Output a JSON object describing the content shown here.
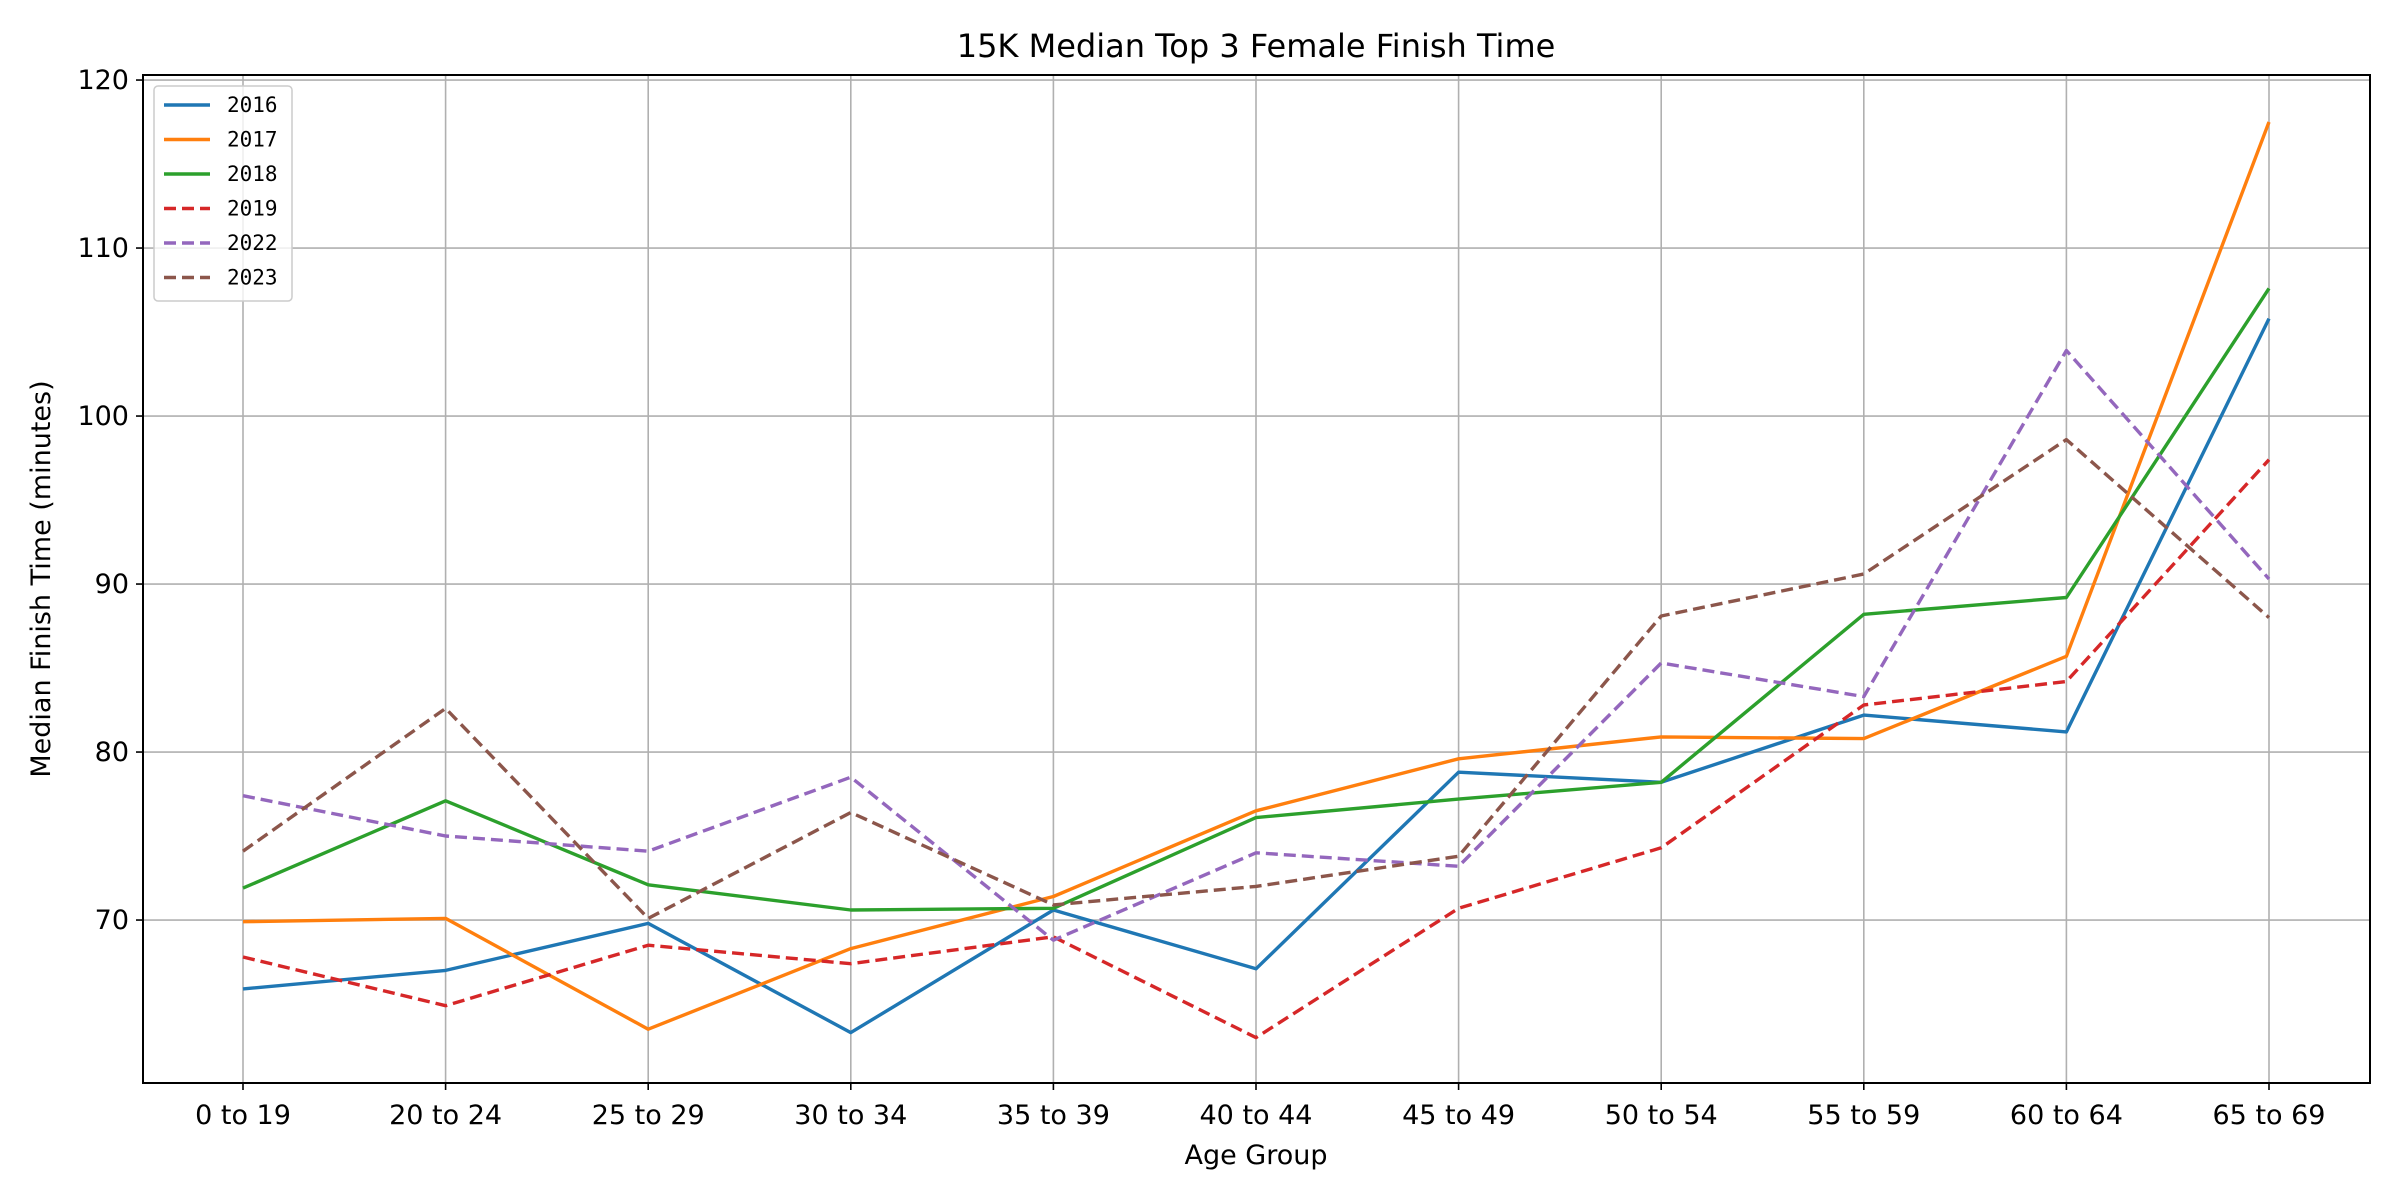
{
  "chart_data": {
    "type": "line",
    "title": "15K Median Top 3 Female Finish Time",
    "xlabel": "Age Group",
    "ylabel": "Median Finish Time (minutes)",
    "ylim": [
      60.3,
      120.3
    ],
    "yticks": [
      70,
      80,
      90,
      100,
      110,
      120
    ],
    "grid": true,
    "legend_position": "upper-left",
    "categories": [
      "0 to 19",
      "20 to 24",
      "25 to 29",
      "30 to 34",
      "35 to 39",
      "40 to 44",
      "45 to 49",
      "50 to 54",
      "55 to 59",
      "60 to 64",
      "65 to 69"
    ],
    "series": [
      {
        "name": "2016",
        "color": "#1f77b4",
        "dash": false,
        "values": [
          65.9,
          67.0,
          69.8,
          63.3,
          70.6,
          67.1,
          78.8,
          78.2,
          82.2,
          81.2,
          105.8
        ]
      },
      {
        "name": "2017",
        "color": "#ff7f0e",
        "dash": false,
        "values": [
          69.9,
          70.1,
          63.5,
          68.3,
          71.4,
          76.5,
          79.6,
          80.9,
          80.8,
          85.7,
          117.5
        ]
      },
      {
        "name": "2018",
        "color": "#2ca02c",
        "dash": false,
        "values": [
          71.9,
          77.1,
          72.1,
          70.6,
          70.7,
          76.1,
          77.2,
          78.2,
          88.2,
          89.2,
          107.6
        ]
      },
      {
        "name": "2019",
        "color": "#d62728",
        "dash": true,
        "values": [
          67.8,
          64.9,
          68.5,
          67.4,
          69.0,
          63.0,
          70.7,
          74.3,
          82.8,
          84.2,
          97.4
        ]
      },
      {
        "name": "2022",
        "color": "#9467bd",
        "dash": true,
        "values": [
          77.4,
          75.0,
          74.1,
          78.5,
          68.8,
          74.0,
          73.2,
          85.3,
          83.3,
          103.9,
          90.3
        ]
      },
      {
        "name": "2023",
        "color": "#8c564b",
        "dash": true,
        "values": [
          74.1,
          82.6,
          70.1,
          76.4,
          70.9,
          72.0,
          73.8,
          88.1,
          90.6,
          98.6,
          88.0
        ]
      }
    ]
  }
}
